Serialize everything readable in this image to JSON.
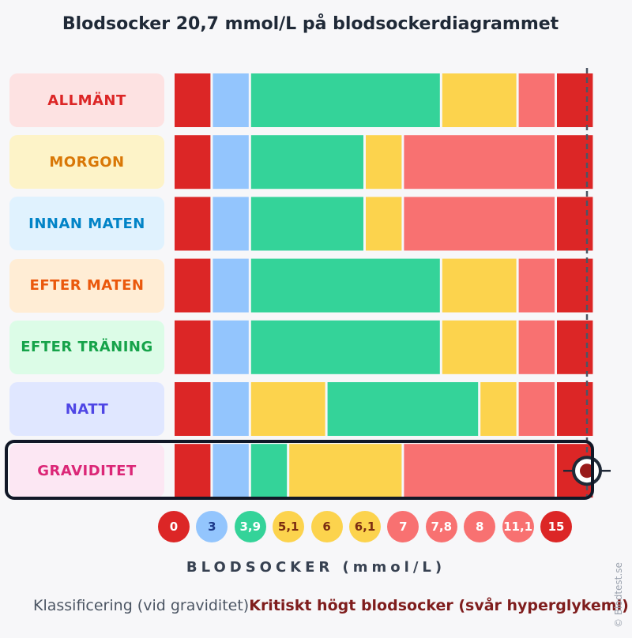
{
  "title": "Blodsocker 20,7 mmol/L på blodsockerdiagrammet",
  "colors": {
    "dark_red": "#dc2626",
    "light_blue": "#93c5fd",
    "green": "#34d399",
    "yellow": "#fcd34d",
    "salmon": "#f87171"
  },
  "chart_data": {
    "type": "bar",
    "orientation": "horizontal-stacked",
    "xlabel": "BLODSOCKER (mmol/L)",
    "ticks": [
      "0",
      "3",
      "3,9",
      "5,1",
      "6",
      "6,1",
      "7",
      "7,8",
      "8",
      "11,1",
      "15"
    ],
    "marker_value": 20.7,
    "highlighted_row": "GRAVIDITET",
    "rows": [
      {
        "label": "ALLMÄNT",
        "segments": [
          "dark_red",
          "light_blue",
          "green",
          "green",
          "green",
          "green",
          "green",
          "yellow",
          "yellow",
          "salmon",
          "dark_red"
        ]
      },
      {
        "label": "MORGON",
        "segments": [
          "dark_red",
          "light_blue",
          "green",
          "green",
          "green",
          "yellow",
          "salmon",
          "salmon",
          "salmon",
          "salmon",
          "dark_red"
        ]
      },
      {
        "label": "INNAN MATEN",
        "segments": [
          "dark_red",
          "light_blue",
          "green",
          "green",
          "green",
          "yellow",
          "salmon",
          "salmon",
          "salmon",
          "salmon",
          "dark_red"
        ]
      },
      {
        "label": "EFTER MATEN",
        "segments": [
          "dark_red",
          "light_blue",
          "green",
          "green",
          "green",
          "green",
          "green",
          "yellow",
          "yellow",
          "salmon",
          "dark_red"
        ]
      },
      {
        "label": "EFTER TRÄNING",
        "segments": [
          "dark_red",
          "light_blue",
          "green",
          "green",
          "green",
          "green",
          "green",
          "yellow",
          "yellow",
          "salmon",
          "dark_red"
        ]
      },
      {
        "label": "NATT",
        "segments": [
          "dark_red",
          "light_blue",
          "yellow",
          "yellow",
          "green",
          "green",
          "green",
          "green",
          "yellow",
          "salmon",
          "dark_red"
        ]
      },
      {
        "label": "GRAVIDITET",
        "segments": [
          "dark_red",
          "light_blue",
          "green",
          "yellow",
          "yellow",
          "yellow",
          "salmon",
          "salmon",
          "salmon",
          "salmon",
          "dark_red"
        ]
      }
    ]
  },
  "tick_style": {
    "0": "dark_red",
    "3": "light_blue",
    "3,9": "green",
    "5,1": "yellow",
    "6": "yellow",
    "6,1": "yellow",
    "7": "salmon",
    "7,8": "salmon",
    "8": "salmon",
    "11,1": "salmon",
    "15": "dark_red"
  },
  "classification": {
    "label": "Klassificering (vid graviditet)",
    "value": "Kritiskt högt blodsocker (svår hyperglykemi)"
  },
  "credit": "© Blodtest.se"
}
